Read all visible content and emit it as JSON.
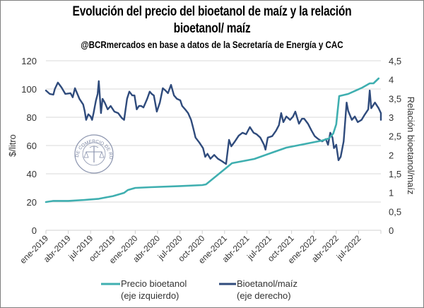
{
  "chart_data": {
    "type": "line",
    "title": "Evolución del precio del bioetanol de maíz y la relación",
    "title_line2": "bioetanol/ maíz",
    "subtitle": "@BCRmercados en base a datos de la Secretaría de Energía y CAC",
    "xlabel": "",
    "ylabel_left": "$/litro",
    "ylabel_right": "Relación bioetanol/maíz",
    "ylim_left": [
      0,
      120
    ],
    "ylim_right": [
      0,
      4.5
    ],
    "yticks_left": [
      "0",
      "20",
      "40",
      "60",
      "80",
      "100",
      "120"
    ],
    "yticks_right": [
      "0",
      "0,5",
      "1",
      "1,5",
      "2",
      "2,5",
      "3",
      "3,5",
      "4",
      "4,5"
    ],
    "x_unit": "months since ene-2019",
    "xlim": [
      0,
      45
    ],
    "xticks": [
      "ene-2019",
      "abr-2019",
      "jul-2019",
      "oct-2019",
      "ene-2020",
      "abr-2020",
      "jul-2020",
      "oct-2020",
      "ene-2021",
      "abr-2021",
      "jul-2021",
      "oct-2021",
      "ene-2022",
      "abr-2022",
      "jul-2022"
    ],
    "grid": true,
    "legend_position": "bottom",
    "watermark": "BOLSA DE COMERCIO DE ROSARIO",
    "series": [
      {
        "name": "Precio bioetanol",
        "name_line2": "(eje izquierdo)",
        "axis": "left",
        "color": "#3fafb0",
        "points": [
          [
            0,
            20
          ],
          [
            1,
            20.8
          ],
          [
            3,
            20.8
          ],
          [
            5.2,
            21.5
          ],
          [
            7.1,
            22.3
          ],
          [
            8.1,
            23.3
          ],
          [
            9,
            24.2
          ],
          [
            10.5,
            26.5
          ],
          [
            11,
            28.5
          ],
          [
            12,
            30
          ],
          [
            14,
            30.5
          ],
          [
            18,
            31.3
          ],
          [
            21,
            32
          ],
          [
            21.5,
            32.5
          ],
          [
            25,
            47.5
          ],
          [
            27,
            49.5
          ],
          [
            28,
            50.5
          ],
          [
            30.4,
            55
          ],
          [
            32.3,
            58.5
          ],
          [
            34.7,
            61
          ],
          [
            37.1,
            63.5
          ],
          [
            38,
            65
          ],
          [
            38.6,
            68.5
          ],
          [
            39,
            75
          ],
          [
            39.4,
            95
          ],
          [
            40.6,
            96.5
          ],
          [
            42.5,
            101
          ],
          [
            43.5,
            104
          ],
          [
            44,
            104
          ],
          [
            44.7,
            107.5
          ]
        ]
      },
      {
        "name": "Bioetanol/maíz",
        "name_line2": "(eje derecho)",
        "axis": "right",
        "color": "#2f4b7c",
        "points": [
          [
            0,
            3.71
          ],
          [
            0.5,
            3.62
          ],
          [
            1,
            3.6
          ],
          [
            1.2,
            3.75
          ],
          [
            1.6,
            3.92
          ],
          [
            2.1,
            3.79
          ],
          [
            2.6,
            3.62
          ],
          [
            3.3,
            3.64
          ],
          [
            3.6,
            3.53
          ],
          [
            3.9,
            3.77
          ],
          [
            4.5,
            3.49
          ],
          [
            5,
            3.34
          ],
          [
            5.2,
            3.17
          ],
          [
            5.4,
            2.93
          ],
          [
            5.7,
            3.08
          ],
          [
            6,
            3.02
          ],
          [
            6.2,
            2.93
          ],
          [
            6.4,
            3.11
          ],
          [
            6.7,
            3.43
          ],
          [
            6.95,
            3.62
          ],
          [
            7.1,
            3.96
          ],
          [
            7.4,
            3.11
          ],
          [
            7.6,
            3.49
          ],
          [
            7.9,
            3.39
          ],
          [
            8.3,
            3.21
          ],
          [
            8.7,
            3.3
          ],
          [
            9.2,
            3.15
          ],
          [
            9.7,
            3.11
          ],
          [
            10.2,
            2.98
          ],
          [
            10.5,
            2.93
          ],
          [
            10.9,
            3.49
          ],
          [
            11.2,
            3.68
          ],
          [
            11.6,
            3.58
          ],
          [
            11.9,
            3.58
          ],
          [
            12.2,
            3.21
          ],
          [
            12.5,
            3.3
          ],
          [
            12.8,
            3.3
          ],
          [
            13.1,
            3.26
          ],
          [
            13.6,
            3.49
          ],
          [
            13.95,
            3.68
          ],
          [
            14.2,
            3.62
          ],
          [
            14.5,
            3.58
          ],
          [
            14.9,
            3.15
          ],
          [
            15.3,
            3.39
          ],
          [
            15.7,
            3.77
          ],
          [
            16.05,
            3.71
          ],
          [
            16.4,
            3.64
          ],
          [
            16.8,
            3.86
          ],
          [
            17.2,
            3.58
          ],
          [
            17.6,
            3.49
          ],
          [
            18.05,
            3.45
          ],
          [
            18.3,
            3.3
          ],
          [
            18.7,
            3.21
          ],
          [
            19.1,
            3.11
          ],
          [
            19.5,
            2.93
          ],
          [
            19.8,
            2.7
          ],
          [
            20.1,
            2.46
          ],
          [
            20.6,
            2.33
          ],
          [
            21.1,
            2.18
          ],
          [
            21.4,
            1.95
          ],
          [
            21.7,
            2.03
          ],
          [
            22.1,
            1.9
          ],
          [
            22.6,
            2.0
          ],
          [
            23.1,
            1.9
          ],
          [
            23.6,
            1.84
          ],
          [
            24.2,
            1.76
          ],
          [
            24.6,
            2.4
          ],
          [
            24.9,
            2.23
          ],
          [
            25.4,
            2.36
          ],
          [
            25.9,
            2.51
          ],
          [
            26.4,
            2.59
          ],
          [
            26.9,
            2.55
          ],
          [
            27.4,
            2.74
          ],
          [
            27.9,
            2.59
          ],
          [
            28.3,
            2.55
          ],
          [
            28.8,
            2.46
          ],
          [
            29.3,
            2.27
          ],
          [
            29.5,
            2.14
          ],
          [
            29.8,
            2.46
          ],
          [
            30.4,
            2.5
          ],
          [
            30.9,
            2.64
          ],
          [
            31.3,
            2.79
          ],
          [
            31.6,
            3.11
          ],
          [
            31.9,
            2.87
          ],
          [
            32.3,
            3.02
          ],
          [
            32.8,
            2.93
          ],
          [
            33.2,
            3.02
          ],
          [
            33.5,
            3.15
          ],
          [
            34,
            2.83
          ],
          [
            34.4,
            2.96
          ],
          [
            34.7,
            2.96
          ],
          [
            35.2,
            2.83
          ],
          [
            35.7,
            2.64
          ],
          [
            36.1,
            2.5
          ],
          [
            36.6,
            2.42
          ],
          [
            37.1,
            2.36
          ],
          [
            37.6,
            2.42
          ],
          [
            37.9,
            2.27
          ],
          [
            38.2,
            2.59
          ],
          [
            38.5,
            2.46
          ],
          [
            38.7,
            2.18
          ],
          [
            39,
            2.27
          ],
          [
            39.3,
            1.86
          ],
          [
            39.6,
            1.95
          ],
          [
            40,
            2.36
          ],
          [
            40.4,
            3.39
          ],
          [
            40.6,
            3.17
          ],
          [
            41.1,
            2.93
          ],
          [
            41.5,
            3.02
          ],
          [
            41.9,
            2.87
          ],
          [
            42.4,
            2.93
          ],
          [
            42.8,
            3.06
          ],
          [
            43.3,
            3.21
          ],
          [
            43.5,
            3.71
          ],
          [
            43.7,
            3.24
          ],
          [
            44.2,
            3.39
          ],
          [
            44.7,
            3.24
          ],
          [
            45.2,
            3.11
          ],
          [
            45.7,
            3.02
          ],
          [
            46.2,
            3.06
          ],
          [
            46.6,
            2.93
          ]
        ]
      }
    ]
  }
}
